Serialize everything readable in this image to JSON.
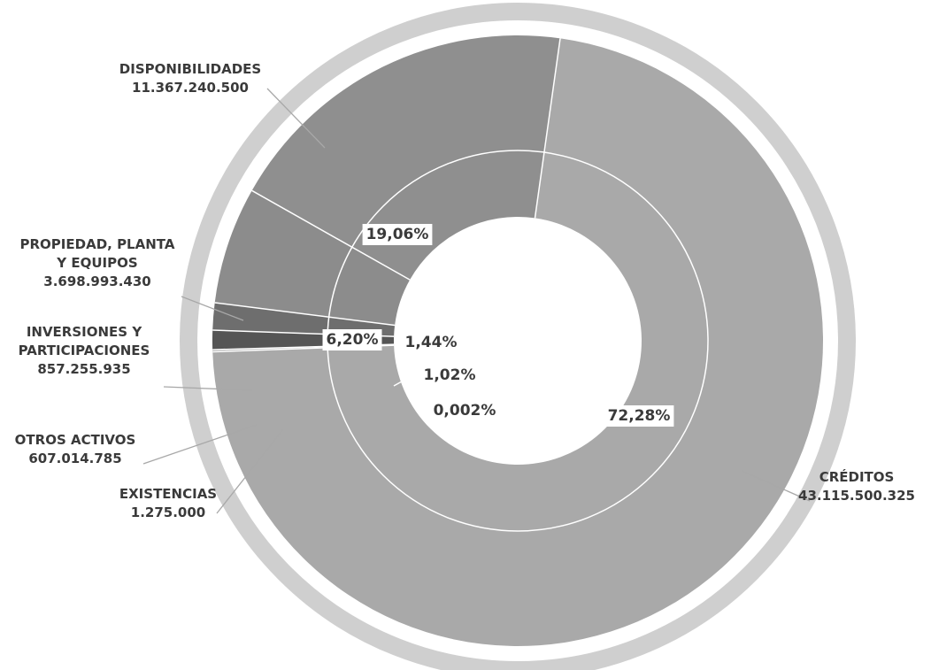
{
  "chart_data": {
    "type": "pie",
    "title": "",
    "slices": [
      {
        "label": [
          "CRÉDITOS"
        ],
        "amount": "43.115.500.325",
        "percent_label": "72,28%",
        "value": 72.28,
        "color": "#a9a9a9"
      },
      {
        "label": [
          "EXISTENCIAS"
        ],
        "amount": "1.275.000",
        "percent_label": "0,002%",
        "value": 0.002,
        "color": "#9a9a9a"
      },
      {
        "label": [
          "OTROS ACTIVOS"
        ],
        "amount": "607.014.785",
        "percent_label": "1,02%",
        "value": 1.02,
        "color": "#555555"
      },
      {
        "label": [
          "INVERSIONES Y",
          "PARTICIPACIONES"
        ],
        "amount": "857.255.935",
        "percent_label": "1,44%",
        "value": 1.44,
        "color": "#6e6e6e"
      },
      {
        "label": [
          "PROPIEDAD, PLANTA",
          "Y EQUIPOS"
        ],
        "amount": "3.698.993.430",
        "percent_label": "6,20%",
        "value": 6.2,
        "color": "#8c8c8c"
      },
      {
        "label": [
          "DISPONIBILIDADES"
        ],
        "amount": "11.367.240.500",
        "percent_label": "19,06%",
        "value": 19.06,
        "color": "#8f8f8f"
      }
    ],
    "outer_ring_color": "#cfcfcf",
    "legend": "none"
  }
}
